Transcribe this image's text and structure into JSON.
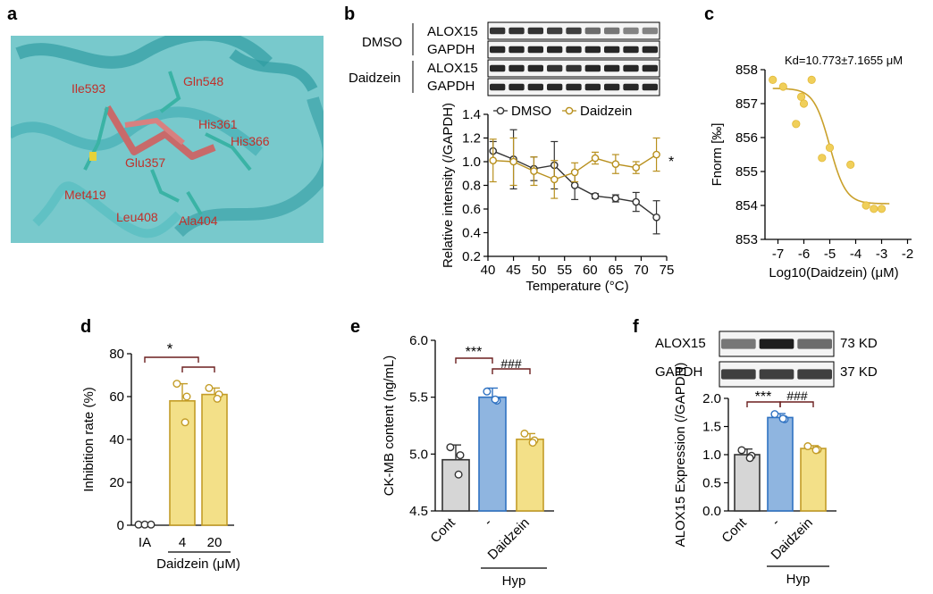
{
  "panels": {
    "a": {
      "letter": "a",
      "residues": [
        "Ile593",
        "Gln548",
        "His361",
        "His366",
        "Glu357",
        "Met419",
        "Leu408",
        "Ala404"
      ]
    },
    "b": {
      "letter": "b",
      "blots": {
        "group1": "DMSO",
        "group2": "Daidzein",
        "rows": [
          "ALOX15",
          "GAPDH",
          "ALOX15",
          "GAPDH"
        ]
      },
      "significance": "*"
    },
    "c": {
      "letter": "c",
      "annotation": "Kd=10.773±7.1655 μM"
    },
    "d": {
      "letter": "d",
      "significance": "*"
    },
    "e": {
      "letter": "e",
      "sig1": "***",
      "sig2": "###"
    },
    "f": {
      "letter": "f",
      "blot_rows": [
        "ALOX15",
        "GAPDH"
      ],
      "blot_sizes": [
        "73 KD",
        "37 KD"
      ],
      "sig1": "***",
      "sig2": "###"
    }
  },
  "colors": {
    "dmso": "#333333",
    "daidzein": "#b8901e",
    "cont": "#d6d6d6",
    "hyp": "#8fb5e0",
    "dz_bar": "#f3e088",
    "molecule": "#4ab0b5",
    "ligand": "#c06060",
    "label_red": "#c0302a"
  },
  "chart_data": [
    {
      "panel": "b",
      "type": "line",
      "title": "",
      "xlabel": "Temperature (°C)",
      "ylabel": "Relative intensity (/GAPDH)",
      "xlim": [
        40,
        75
      ],
      "ylim": [
        0.2,
        1.4
      ],
      "xticks": [
        "40",
        "45",
        "50",
        "55",
        "60",
        "65",
        "70",
        "75"
      ],
      "yticks": [
        "0.2",
        "0.4",
        "0.6",
        "0.8",
        "1.0",
        "1.2",
        "1.4"
      ],
      "legend": [
        "DMSO",
        "Daidzein"
      ],
      "series": [
        {
          "name": "DMSO",
          "x": [
            41,
            45,
            49,
            53,
            57,
            61,
            65,
            69,
            73
          ],
          "y": [
            1.09,
            1.02,
            0.94,
            0.97,
            0.8,
            0.71,
            0.69,
            0.66,
            0.53
          ],
          "err": [
            0.08,
            0.25,
            0.1,
            0.2,
            0.12,
            0.02,
            0.03,
            0.08,
            0.14
          ]
        },
        {
          "name": "Daidzein",
          "x": [
            41,
            45,
            49,
            53,
            57,
            61,
            65,
            69,
            73
          ],
          "y": [
            1.01,
            1.0,
            0.92,
            0.85,
            0.91,
            1.03,
            0.98,
            0.95,
            1.06
          ],
          "err": [
            0.18,
            0.2,
            0.12,
            0.16,
            0.08,
            0.05,
            0.08,
            0.05,
            0.14
          ]
        }
      ]
    },
    {
      "panel": "c",
      "type": "scatter",
      "title": "",
      "xlabel": "Log10(Daidzein) (μM)",
      "ylabel": "Fnorm [‰]",
      "xlim": [
        -7.5,
        -1.5
      ],
      "ylim": [
        853,
        858
      ],
      "xticks": [
        "-7",
        "-6",
        "-5",
        "-4",
        "-3",
        "-2"
      ],
      "yticks": [
        "853",
        "854",
        "855",
        "856",
        "857",
        "858"
      ],
      "points": {
        "x": [
          -7.2,
          -6.8,
          -6.3,
          -6.1,
          -6.0,
          -5.7,
          -5.3,
          -5.0,
          -4.2,
          -3.6,
          -3.3,
          -3.0
        ],
        "y": [
          857.7,
          857.5,
          856.4,
          857.2,
          857.0,
          857.7,
          855.4,
          855.7,
          855.2,
          854.0,
          853.9,
          853.9
        ]
      },
      "fit": {
        "top": 857.45,
        "bottom": 854.05,
        "log_kd": -5.0,
        "slope": 1.4
      }
    },
    {
      "panel": "d",
      "type": "bar",
      "xlabel": "Daidzein (μM)",
      "ylabel": "Inhibition rate (%)",
      "ylim": [
        0,
        80
      ],
      "yticks": [
        "0",
        "20",
        "40",
        "60",
        "80"
      ],
      "categories": [
        "IA",
        "4",
        "20"
      ],
      "values": [
        0,
        58,
        61
      ],
      "err": [
        0,
        8,
        3
      ],
      "points": [
        [
          0.3,
          0.3,
          0.3
        ],
        [
          66,
          60,
          48
        ],
        [
          64,
          61,
          59
        ]
      ]
    },
    {
      "panel": "e",
      "type": "bar",
      "xlabel": "Hyp",
      "ylabel": "CK-MB content (ng/mL)",
      "ylim": [
        4.5,
        6.0
      ],
      "yticks": [
        "4.5",
        "5.0",
        "5.5",
        "6.0"
      ],
      "categories": [
        "Cont",
        "-",
        "Daidzein"
      ],
      "values": [
        4.95,
        5.5,
        5.13
      ],
      "err": [
        0.13,
        0.08,
        0.05
      ],
      "points": [
        [
          5.06,
          4.99,
          4.82
        ],
        [
          5.55,
          5.47,
          5.48
        ],
        [
          5.18,
          5.12,
          5.1
        ]
      ]
    },
    {
      "panel": "f",
      "type": "bar",
      "xlabel": "Hyp",
      "ylabel": "ALOX15 Expression (/GAPDH)",
      "ylim": [
        0,
        2.0
      ],
      "yticks": [
        "0.0",
        "0.5",
        "1.0",
        "1.5",
        "2.0"
      ],
      "categories": [
        "Cont",
        "-",
        "Daidzein"
      ],
      "values": [
        1.0,
        1.66,
        1.11
      ],
      "err": [
        0.1,
        0.07,
        0.05
      ],
      "points": [
        [
          1.08,
          0.98,
          0.94
        ],
        [
          1.72,
          1.63,
          1.64
        ],
        [
          1.15,
          1.09,
          1.08
        ]
      ]
    }
  ]
}
